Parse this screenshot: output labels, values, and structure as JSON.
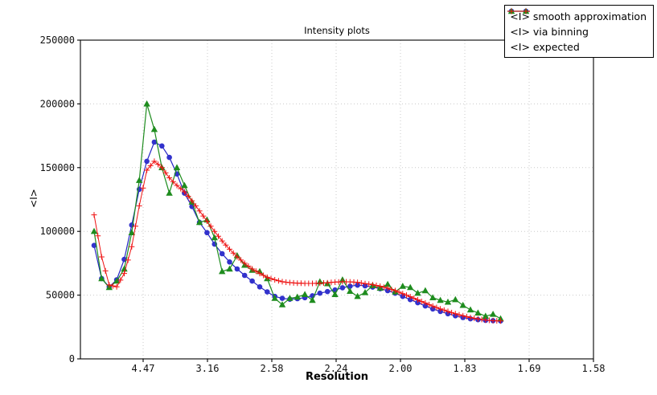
{
  "figure_title": "Intensity plots",
  "chart_data": {
    "type": "line",
    "title": "Intensity plots",
    "xlabel": "Resolution",
    "ylabel": "<I>",
    "grid": "dotted",
    "legend_position": "upper right",
    "x_axis": {
      "scale": "linear in 1/d^2",
      "range": [
        0.00125,
        0.4
      ],
      "tick_positions": [
        0.05,
        0.1,
        0.15,
        0.2,
        0.25,
        0.3,
        0.35,
        0.4
      ],
      "tick_labels": [
        "4.47",
        "3.16",
        "2.58",
        "2.24",
        "2.00",
        "1.83",
        "1.69",
        "1.58"
      ]
    },
    "y_axis": {
      "range": [
        0,
        250000
      ],
      "ticks": [
        0,
        50000,
        100000,
        150000,
        200000,
        250000
      ],
      "tick_labels": [
        "0",
        "50000",
        "100000",
        "150000",
        "200000",
        "250000"
      ]
    },
    "series": [
      {
        "name": "<I> smooth approximation",
        "marker": "circle",
        "color": "#3232cc",
        "line_color": "#2525c5",
        "x_start": 0.0119,
        "x_step": 0.00585,
        "values": [
          89000,
          63000,
          56500,
          62000,
          78000,
          105000,
          133000,
          155000,
          170000,
          167000,
          158000,
          145000,
          130000,
          119500,
          107000,
          99000,
          90000,
          82500,
          76000,
          70500,
          65500,
          61000,
          56500,
          52500,
          49000,
          47500,
          46800,
          47200,
          48000,
          49500,
          51500,
          52800,
          54000,
          55800,
          57000,
          57800,
          57300,
          56300,
          55000,
          53500,
          51500,
          49000,
          46500,
          44000,
          41500,
          39200,
          37200,
          35400,
          33800,
          32400,
          31400,
          30700,
          30200,
          30000,
          29800
        ]
      },
      {
        "name": "<I> via binning",
        "marker": "triangle",
        "color": "#1e8c1e",
        "line_color": "#1e8c1e",
        "x_start": 0.0119,
        "x_step": 0.00585,
        "values": [
          100000,
          63000,
          56000,
          61000,
          70500,
          99000,
          140000,
          200000,
          180000,
          150000,
          130000,
          150000,
          136000,
          123000,
          107000,
          109000,
          95000,
          68500,
          70500,
          81000,
          73500,
          69500,
          68500,
          63000,
          47500,
          42500,
          47500,
          48500,
          50500,
          46000,
          60500,
          59000,
          50500,
          62000,
          53000,
          49000,
          52000,
          57500,
          55500,
          58500,
          52500,
          57000,
          56000,
          51500,
          53500,
          48000,
          46000,
          44500,
          46500,
          42000,
          38500,
          36000,
          33500,
          35000,
          31500
        ]
      },
      {
        "name": "<I> expected",
        "marker": "plus",
        "color": "#ee1111",
        "line_color": "#ee1111",
        "x_start": 0.0119,
        "x_step": 0.002925,
        "values": [
          113000,
          96500,
          80000,
          69000,
          58000,
          57250,
          56500,
          61750,
          67000,
          77500,
          88000,
          104000,
          120000,
          134000,
          148000,
          151500,
          155000,
          152500,
          150000,
          146000,
          142000,
          139000,
          136000,
          133500,
          131000,
          127500,
          124000,
          120000,
          116000,
          112000,
          108000,
          104000,
          100000,
          96250,
          92500,
          89250,
          86000,
          83000,
          80000,
          77500,
          75000,
          72750,
          70500,
          68750,
          67000,
          65500,
          64000,
          63000,
          62000,
          61250,
          60500,
          60150,
          59800,
          59600,
          59400,
          59300,
          59200,
          59200,
          59200,
          59250,
          59300,
          59500,
          59700,
          59950,
          60200,
          60350,
          60500,
          60450,
          60400,
          60200,
          60000,
          59500,
          59000,
          58600,
          58200,
          57600,
          57000,
          56250,
          55500,
          54500,
          53500,
          52350,
          51200,
          50000,
          48800,
          47550,
          46300,
          45050,
          43800,
          42600,
          41400,
          40300,
          39200,
          38200,
          37200,
          36300,
          35400,
          34600,
          33800,
          33100,
          32400,
          31850,
          31300,
          30900,
          30500,
          30250,
          30000,
          29850,
          29700
        ]
      }
    ]
  }
}
